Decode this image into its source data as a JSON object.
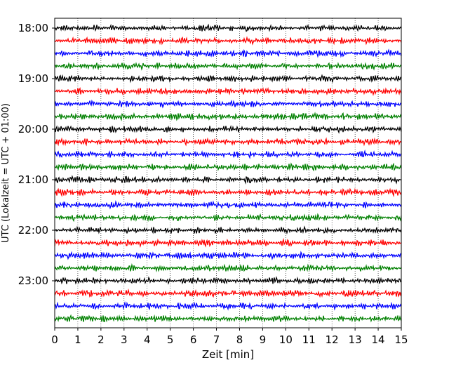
{
  "chart_data": {
    "type": "line",
    "title": "",
    "xlabel": "Zeit  [min]",
    "ylabel": "UTC (Lokalzeit = UTC + 01:00)",
    "xlim": [
      0,
      15
    ],
    "x_ticks": [
      "0",
      "1",
      "2",
      "3",
      "4",
      "5",
      "6",
      "7",
      "8",
      "9",
      "10",
      "11",
      "12",
      "13",
      "14",
      "15"
    ],
    "y_ticks": [
      "18:00",
      "19:00",
      "20:00",
      "21:00",
      "22:00",
      "23:00"
    ],
    "grid": "vertical dotted",
    "trace_colors": [
      "#000000",
      "#ff0000",
      "#0000ff",
      "#008000"
    ],
    "trace_start_times": [
      "18:00",
      "18:15",
      "18:30",
      "18:45",
      "19:00",
      "19:15",
      "19:30",
      "19:45",
      "20:00",
      "20:15",
      "20:30",
      "20:45",
      "21:00",
      "21:15",
      "21:30",
      "21:45",
      "22:00",
      "22:15",
      "22:30",
      "22:45",
      "23:00",
      "23:15",
      "23:30",
      "23:45"
    ],
    "trace_minutes_per_line": 15
  }
}
